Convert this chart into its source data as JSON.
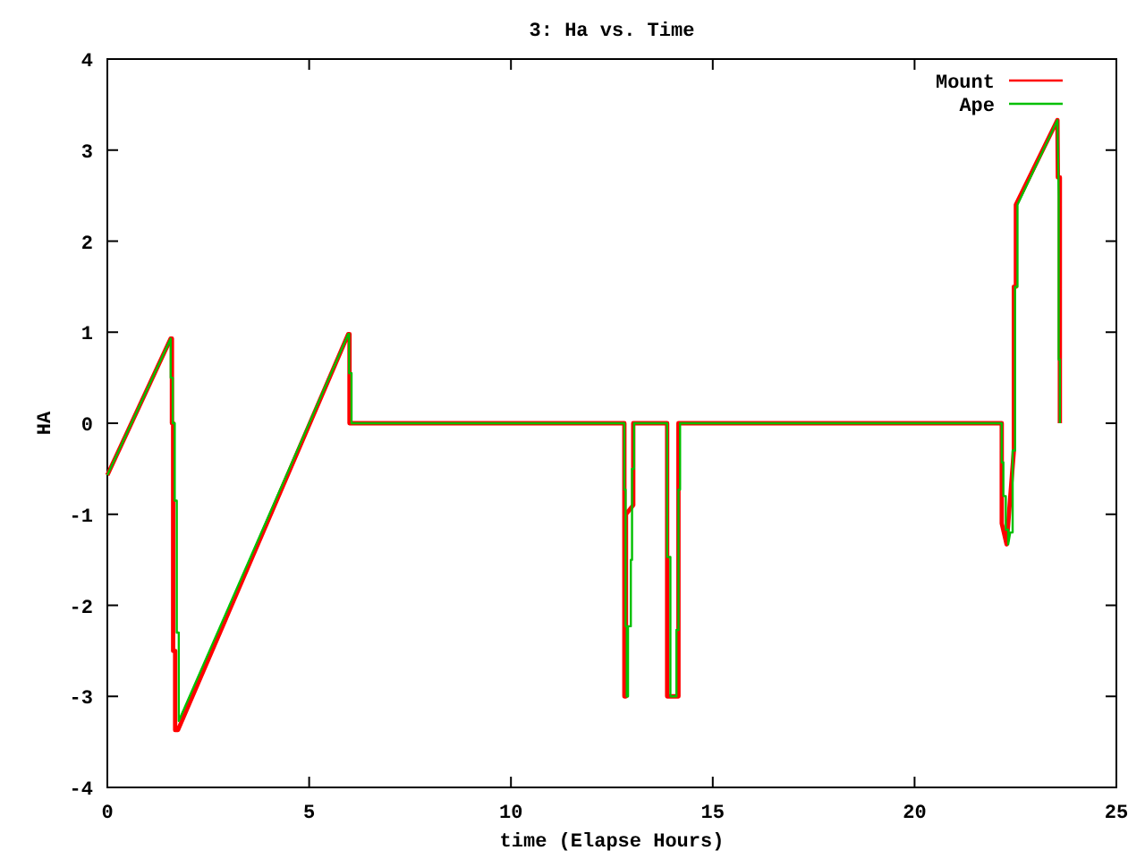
{
  "chart_data": {
    "type": "line",
    "title": "3: Ha vs. Time",
    "xlabel": "time (Elapse Hours)",
    "ylabel": "HA",
    "xlim": [
      0,
      25
    ],
    "xticks": [
      0,
      5,
      10,
      15,
      20,
      25
    ],
    "ylim": [
      -4,
      4
    ],
    "yticks": [
      -4,
      -3,
      -2,
      -1,
      0,
      1,
      2,
      3,
      4
    ],
    "grid": false,
    "legend": "top right",
    "marker": "none",
    "line_style": "solid",
    "series": [
      {
        "name": "Mount",
        "color": "#ff0000",
        "x": [
          0,
          1.57,
          1.6,
          1.6,
          1.63,
          1.63,
          1.68,
          1.68,
          1.75,
          5.97,
          6.0,
          6.0,
          12.81,
          12.81,
          12.85,
          12.85,
          13.03,
          13.03,
          13.87,
          13.87,
          14.15,
          14.15,
          22.16,
          22.16,
          22.28,
          22.46,
          22.46,
          22.51,
          22.51,
          23.54,
          23.55,
          23.6,
          23.6
        ],
        "values": [
          -0.57,
          0.93,
          0.93,
          0,
          0,
          -2.5,
          -2.5,
          -3.37,
          -3.37,
          0.98,
          0.98,
          0,
          0,
          -3.0,
          -3.0,
          -1.0,
          -0.9,
          0,
          0,
          -3.0,
          -3.0,
          0,
          0,
          -1.1,
          -1.33,
          -0.3,
          1.5,
          1.5,
          2.4,
          3.33,
          2.7,
          2.7,
          0
        ]
      },
      {
        "name": "Ape",
        "color": "#00c000",
        "x": [
          0,
          1.57,
          1.57,
          1.62,
          1.62,
          1.67,
          1.67,
          1.72,
          1.72,
          1.77,
          1.77,
          5.97,
          5.99,
          5.99,
          6.05,
          6.05,
          12.81,
          12.81,
          12.84,
          12.84,
          12.87,
          12.87,
          12.9,
          12.9,
          12.97,
          12.97,
          13.0,
          13.0,
          13.05,
          13.05,
          13.87,
          13.87,
          13.95,
          13.95,
          14.1,
          14.1,
          14.15,
          14.15,
          14.19,
          14.19,
          22.16,
          22.16,
          22.2,
          22.2,
          22.26,
          22.26,
          22.32,
          22.32,
          22.37,
          22.43,
          22.43,
          22.49,
          22.49,
          22.55,
          22.55,
          23.54,
          23.57,
          23.57,
          23.6,
          23.6
        ],
        "values": [
          -0.57,
          0.93,
          0.5,
          0.5,
          0,
          0,
          -0.85,
          -0.85,
          -2.3,
          -2.3,
          -3.27,
          0.98,
          0.98,
          0.55,
          0.55,
          0,
          0,
          -0.73,
          -0.73,
          -2.23,
          -2.23,
          -3.0,
          -3.0,
          -2.23,
          -2.23,
          -1.5,
          -1.5,
          -0.5,
          -0.5,
          0,
          0,
          -1.47,
          -1.47,
          -3.0,
          -3.0,
          -2.27,
          -2.27,
          -0.73,
          -0.73,
          0,
          0,
          -0.43,
          -0.43,
          -0.8,
          -0.8,
          -1.17,
          -1.17,
          -1.33,
          -1.2,
          -1.2,
          -0.3,
          -0.3,
          1.5,
          1.5,
          2.4,
          3.33,
          2.5,
          0.7,
          0.7,
          0
        ]
      }
    ]
  }
}
